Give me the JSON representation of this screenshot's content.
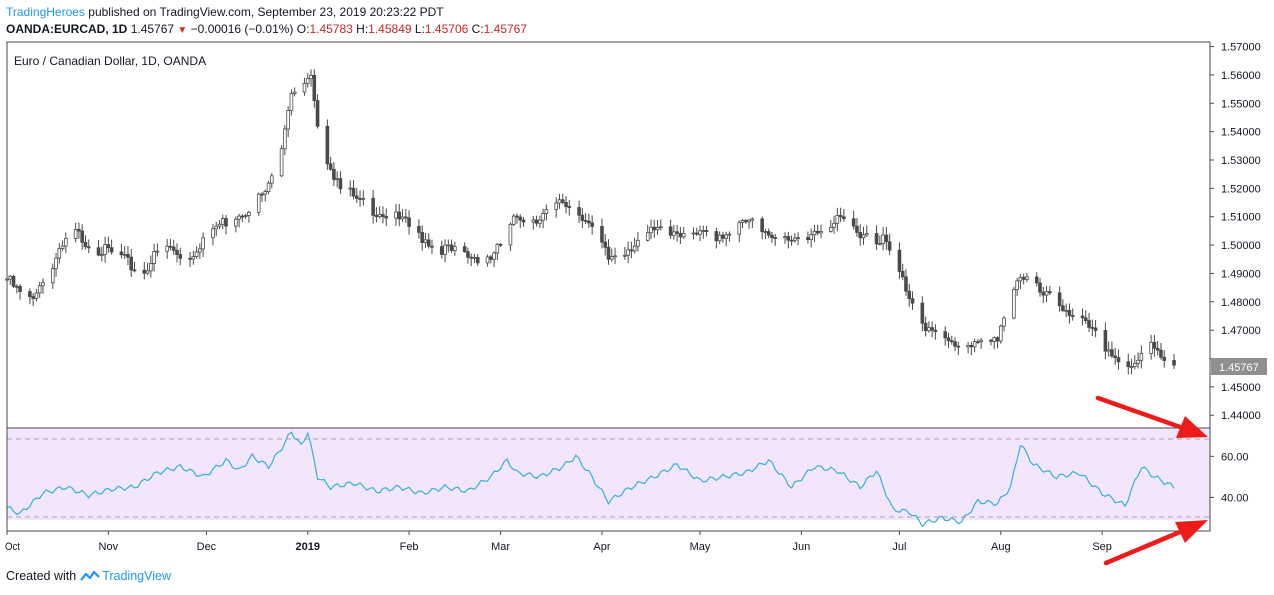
{
  "header": {
    "publisher": "TradingHeroes",
    "published_text": "published on TradingView.com, September 23, 2019 20:23:22 PDT",
    "symbol": "OANDA:EURCAD, 1D",
    "last": "1.45767",
    "change_arrow": "▼",
    "change": "−0.00016 (−0.01%)",
    "o_label": "O:",
    "o_value": "1.45783",
    "h_label": "H:",
    "h_value": "1.45849",
    "l_label": "L:",
    "l_value": "1.45706",
    "c_label": "C:",
    "c_value": "1.45767"
  },
  "footer": {
    "created_with": "Created with",
    "brand": "TradingView",
    "logo_icon": "tradingview-logo-icon"
  },
  "colors": {
    "candle": "#4a4a4a",
    "rsi_line": "#35b0d6",
    "rsi_band": "#f3e5fc",
    "arrow": "#ee1b1b",
    "brand": "#2196f3",
    "down": "#d32f2f",
    "price_tag": "#8f8f8f"
  },
  "chart_data": [
    {
      "type": "candlestick",
      "title": "Euro / Canadian Dollar, 1D, OANDA",
      "y_axis_ticks": [
        "1.57000",
        "1.56000",
        "1.55000",
        "1.54000",
        "1.53000",
        "1.52000",
        "1.51000",
        "1.50000",
        "1.49000",
        "1.48000",
        "1.47000",
        "1.46000",
        "1.45000",
        "1.44000"
      ],
      "ylim": [
        1.4355,
        1.5716
      ],
      "x_axis_ticks": [
        "Oct",
        "Nov",
        "Dec",
        "2019",
        "Feb",
        "Mar",
        "Apr",
        "May",
        "Jun",
        "Jul",
        "Aug",
        "Sep"
      ],
      "x_tick_days": [
        1,
        32,
        62,
        93,
        124,
        152,
        183,
        213,
        244,
        274,
        305,
        336
      ],
      "x_axis_start": "2018-10-01",
      "last_price_label": "1.45767",
      "series": [
        {
          "name": "OANDA:EURCAD",
          "closes": [
            {
              "date": "2018-10-01",
              "close": 1.488
            },
            {
              "date": "2018-10-07",
              "close": 1.48
            },
            {
              "date": "2018-10-14",
              "close": 1.49
            },
            {
              "date": "2018-10-21",
              "close": 1.505
            },
            {
              "date": "2018-10-28",
              "close": 1.499
            },
            {
              "date": "2018-11-04",
              "close": 1.496
            },
            {
              "date": "2018-11-11",
              "close": 1.49
            },
            {
              "date": "2018-11-18",
              "close": 1.5
            },
            {
              "date": "2018-11-25",
              "close": 1.495
            },
            {
              "date": "2018-12-02",
              "close": 1.505
            },
            {
              "date": "2018-12-09",
              "close": 1.51
            },
            {
              "date": "2018-12-16",
              "close": 1.515
            },
            {
              "date": "2018-12-20",
              "close": 1.52
            },
            {
              "date": "2018-12-23",
              "close": 1.53
            },
            {
              "date": "2018-12-27",
              "close": 1.555
            },
            {
              "date": "2018-12-30",
              "close": 1.556
            },
            {
              "date": "2019-01-02",
              "close": 1.558
            },
            {
              "date": "2019-01-04",
              "close": 1.54
            },
            {
              "date": "2019-01-09",
              "close": 1.525
            },
            {
              "date": "2019-01-16",
              "close": 1.515
            },
            {
              "date": "2019-01-23",
              "close": 1.512
            },
            {
              "date": "2019-01-30",
              "close": 1.508
            },
            {
              "date": "2019-02-06",
              "close": 1.502
            },
            {
              "date": "2019-02-13",
              "close": 1.498
            },
            {
              "date": "2019-02-20",
              "close": 1.496
            },
            {
              "date": "2019-02-27",
              "close": 1.496
            },
            {
              "date": "2019-03-06",
              "close": 1.51
            },
            {
              "date": "2019-03-13",
              "close": 1.51
            },
            {
              "date": "2019-03-20",
              "close": 1.515
            },
            {
              "date": "2019-03-27",
              "close": 1.51
            },
            {
              "date": "2019-04-03",
              "close": 1.495
            },
            {
              "date": "2019-04-10",
              "close": 1.5
            },
            {
              "date": "2019-04-17",
              "close": 1.505
            },
            {
              "date": "2019-04-24",
              "close": 1.505
            },
            {
              "date": "2019-05-01",
              "close": 1.503
            },
            {
              "date": "2019-05-08",
              "close": 1.504
            },
            {
              "date": "2019-05-15",
              "close": 1.508
            },
            {
              "date": "2019-05-22",
              "close": 1.505
            },
            {
              "date": "2019-05-29",
              "close": 1.5
            },
            {
              "date": "2019-06-05",
              "close": 1.505
            },
            {
              "date": "2019-06-12",
              "close": 1.508
            },
            {
              "date": "2019-06-19",
              "close": 1.505
            },
            {
              "date": "2019-06-26",
              "close": 1.502
            },
            {
              "date": "2019-07-01",
              "close": 1.49
            },
            {
              "date": "2019-07-05",
              "close": 1.48
            },
            {
              "date": "2019-07-10",
              "close": 1.47
            },
            {
              "date": "2019-07-17",
              "close": 1.465
            },
            {
              "date": "2019-07-24",
              "close": 1.466
            },
            {
              "date": "2019-07-31",
              "close": 1.465
            },
            {
              "date": "2019-08-03",
              "close": 1.48
            },
            {
              "date": "2019-08-07",
              "close": 1.49
            },
            {
              "date": "2019-08-14",
              "close": 1.482
            },
            {
              "date": "2019-08-21",
              "close": 1.478
            },
            {
              "date": "2019-08-28",
              "close": 1.47
            },
            {
              "date": "2019-09-04",
              "close": 1.462
            },
            {
              "date": "2019-09-09",
              "close": 1.455
            },
            {
              "date": "2019-09-12",
              "close": 1.458
            },
            {
              "date": "2019-09-15",
              "close": 1.468
            },
            {
              "date": "2019-09-19",
              "close": 1.462
            },
            {
              "date": "2019-09-23",
              "close": 1.45767
            }
          ]
        }
      ]
    },
    {
      "type": "line",
      "title": "",
      "y_axis_ticks": [
        "60.00",
        "40.00"
      ],
      "ylim": [
        23.6,
        73.8
      ],
      "bands": [
        30,
        70
      ],
      "series": [
        {
          "name": "",
          "points": [
            {
              "date": "2018-10-01",
              "value": 35
            },
            {
              "date": "2018-10-05",
              "value": 32
            },
            {
              "date": "2018-10-12",
              "value": 42
            },
            {
              "date": "2018-10-19",
              "value": 45
            },
            {
              "date": "2018-10-26",
              "value": 41
            },
            {
              "date": "2018-11-02",
              "value": 44
            },
            {
              "date": "2018-11-09",
              "value": 45
            },
            {
              "date": "2018-11-16",
              "value": 52
            },
            {
              "date": "2018-11-23",
              "value": 55
            },
            {
              "date": "2018-11-30",
              "value": 50
            },
            {
              "date": "2018-12-07",
              "value": 58
            },
            {
              "date": "2018-12-11",
              "value": 53
            },
            {
              "date": "2018-12-15",
              "value": 60
            },
            {
              "date": "2018-12-20",
              "value": 55
            },
            {
              "date": "2018-12-24",
              "value": 64
            },
            {
              "date": "2018-12-27",
              "value": 72
            },
            {
              "date": "2018-12-30",
              "value": 65
            },
            {
              "date": "2019-01-01",
              "value": 72
            },
            {
              "date": "2019-01-04",
              "value": 50
            },
            {
              "date": "2019-01-08",
              "value": 45
            },
            {
              "date": "2019-01-15",
              "value": 47
            },
            {
              "date": "2019-01-22",
              "value": 43
            },
            {
              "date": "2019-01-29",
              "value": 45
            },
            {
              "date": "2019-02-05",
              "value": 42
            },
            {
              "date": "2019-02-12",
              "value": 45
            },
            {
              "date": "2019-02-19",
              "value": 43
            },
            {
              "date": "2019-02-26",
              "value": 50
            },
            {
              "date": "2019-03-03",
              "value": 58
            },
            {
              "date": "2019-03-06",
              "value": 52
            },
            {
              "date": "2019-03-13",
              "value": 50
            },
            {
              "date": "2019-03-20",
              "value": 55
            },
            {
              "date": "2019-03-24",
              "value": 60
            },
            {
              "date": "2019-03-28",
              "value": 52
            },
            {
              "date": "2019-04-03",
              "value": 38
            },
            {
              "date": "2019-04-10",
              "value": 45
            },
            {
              "date": "2019-04-17",
              "value": 50
            },
            {
              "date": "2019-04-24",
              "value": 56
            },
            {
              "date": "2019-05-01",
              "value": 48
            },
            {
              "date": "2019-05-08",
              "value": 50
            },
            {
              "date": "2019-05-15",
              "value": 52
            },
            {
              "date": "2019-05-22",
              "value": 58
            },
            {
              "date": "2019-05-29",
              "value": 45
            },
            {
              "date": "2019-06-05",
              "value": 55
            },
            {
              "date": "2019-06-12",
              "value": 53
            },
            {
              "date": "2019-06-19",
              "value": 45
            },
            {
              "date": "2019-06-24",
              "value": 53
            },
            {
              "date": "2019-06-29",
              "value": 34
            },
            {
              "date": "2019-07-04",
              "value": 33
            },
            {
              "date": "2019-07-08",
              "value": 27
            },
            {
              "date": "2019-07-14",
              "value": 30
            },
            {
              "date": "2019-07-20",
              "value": 28
            },
            {
              "date": "2019-07-25",
              "value": 38
            },
            {
              "date": "2019-07-31",
              "value": 37
            },
            {
              "date": "2019-08-04",
              "value": 45
            },
            {
              "date": "2019-08-07",
              "value": 66
            },
            {
              "date": "2019-08-11",
              "value": 56
            },
            {
              "date": "2019-08-18",
              "value": 50
            },
            {
              "date": "2019-08-25",
              "value": 52
            },
            {
              "date": "2019-09-01",
              "value": 42
            },
            {
              "date": "2019-09-08",
              "value": 36
            },
            {
              "date": "2019-09-13",
              "value": 55
            },
            {
              "date": "2019-09-17",
              "value": 50
            },
            {
              "date": "2019-09-23",
              "value": 45
            }
          ]
        }
      ]
    }
  ]
}
